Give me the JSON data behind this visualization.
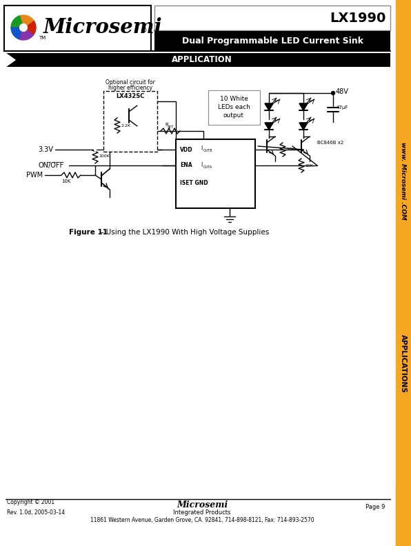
{
  "page_bg": "#ffffff",
  "orange_bar_color": "#f5a623",
  "title_text": "LX1990",
  "subtitle_text": "Dual Programmable LED Current Sink",
  "section_text": "APPLICATION",
  "figure_caption_bold": "Figure 11",
  "figure_caption_rest": " – Using the LX1990 With High Voltage Supplies",
  "footer_copyright": "Copyright © 2001\nRev. 1.0d, 2005-03-14",
  "footer_company": "Microsemi",
  "footer_integrated": "Integrated Products",
  "footer_address": "11861 Western Avenue, Garden Grove, CA. 92841, 714-898-8121, Fax: 714-893-2570",
  "footer_page": "Page 9",
  "www_text": "www. Microsemi .COM",
  "applications_text": "APPLICATIONS"
}
